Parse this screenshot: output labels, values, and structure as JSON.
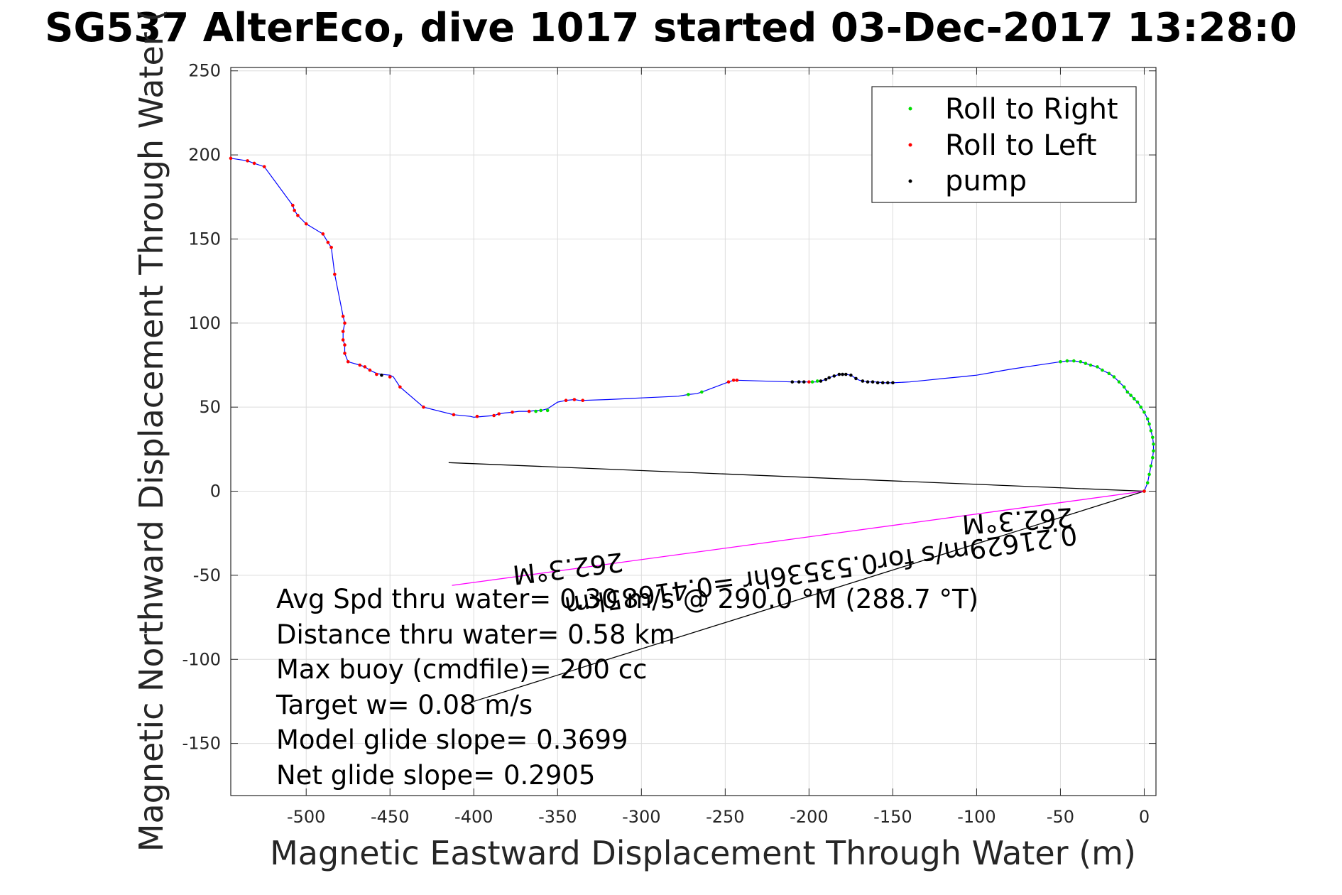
{
  "chart_data": {
    "type": "line",
    "title": "SG537 AlterEco, dive 1017 started 03-Dec-2017 13:28:0",
    "xlabel": "Magnetic Eastward Displacement Through Water (m)",
    "ylabel": "Magnetic Northward Displacement Through Water (",
    "xlim": [
      -545,
      7
    ],
    "ylim": [
      -181,
      252
    ],
    "xticks": [
      -500,
      -450,
      -400,
      -350,
      -300,
      -250,
      -200,
      -150,
      -100,
      -50,
      0
    ],
    "yticks": [
      -150,
      -100,
      -50,
      0,
      50,
      100,
      150,
      200,
      250
    ],
    "grid": true,
    "legend": {
      "position": "top-right",
      "entries": [
        {
          "label": "Roll to Right",
          "color": "#00dd00",
          "marker": "dot"
        },
        {
          "label": "Roll to Left",
          "color": "#ff0000",
          "marker": "dot"
        },
        {
          "label": "pump",
          "color": "#000000",
          "marker": "dot"
        }
      ]
    },
    "track": {
      "color": "#0000ff",
      "x": [
        0,
        2,
        3,
        4,
        5,
        5.5,
        5.5,
        5,
        4,
        3,
        2,
        0,
        -2,
        -4,
        -6,
        -8,
        -10,
        -12,
        -15,
        -18,
        -21,
        -25,
        -28,
        -32,
        -35,
        -38,
        -42,
        -46,
        -50,
        -60,
        -80,
        -100,
        -105,
        -110,
        -120,
        -130,
        -140,
        -150,
        -152,
        -155,
        -160,
        -165,
        -170,
        -172,
        -175,
        -178,
        -180,
        -182,
        -185,
        -188,
        -190,
        -193,
        -195,
        -198,
        -200,
        -203,
        -206,
        -210,
        -243,
        -245,
        -248,
        -264,
        -267,
        -272,
        -275,
        -278,
        -300,
        -320,
        -335,
        -337,
        -340,
        -345,
        -350,
        -356,
        -360,
        -363,
        -367,
        -373,
        -377,
        -382,
        -385,
        -388,
        -400,
        -402,
        -412,
        -430,
        -444,
        -448,
        -450,
        -455,
        -458,
        -462,
        -465,
        -468,
        -475,
        -477,
        -477,
        -478,
        -478,
        -477,
        -478,
        -483,
        -485,
        -487,
        -490,
        -500,
        -505,
        -507,
        -508,
        -525,
        -531,
        -535,
        -545
      ],
      "y": [
        0,
        5,
        10,
        15,
        20,
        24,
        28,
        32,
        36,
        40,
        43,
        47,
        50,
        53,
        55,
        57,
        59,
        62,
        65,
        68,
        70,
        72,
        74,
        75,
        76,
        77,
        77.5,
        77.5,
        77,
        75.5,
        72.5,
        69,
        68.5,
        68,
        67,
        66,
        65,
        64.5,
        64.5,
        64.5,
        65,
        65,
        66,
        67,
        69,
        69.5,
        69.5,
        69.5,
        68.5,
        67.5,
        66.5,
        65.5,
        65,
        65,
        65,
        65,
        65,
        65,
        66,
        66,
        65,
        59,
        58,
        57.5,
        57,
        56.5,
        55.5,
        54.5,
        54,
        54,
        54.5,
        54,
        53,
        49,
        48,
        48,
        47.5,
        47.5,
        47,
        46.5,
        46,
        45,
        44,
        44.5,
        45.5,
        50,
        62,
        68,
        69,
        69.5,
        70,
        72,
        74,
        75,
        77,
        82,
        87,
        90,
        95,
        100,
        104,
        129,
        145,
        148,
        153,
        159,
        164,
        167,
        170,
        193,
        195,
        196.5,
        198
      ]
    },
    "markers": {
      "roll_right": {
        "x": [
          0,
          2,
          3,
          4,
          5,
          5.5,
          5.5,
          5,
          4,
          3,
          2,
          0,
          -2,
          -4,
          -6,
          -8,
          -10,
          -12,
          -15,
          -18,
          -21,
          -25,
          -28,
          -32,
          -35,
          -38,
          -42,
          -46,
          -50,
          -195,
          -198,
          -264,
          -272,
          -356,
          -360,
          -363
        ],
        "y": [
          0,
          5,
          10,
          15,
          20,
          24,
          28,
          32,
          36,
          40,
          43,
          47,
          50,
          53,
          55,
          57,
          59,
          62,
          65,
          68,
          70,
          72,
          74,
          75,
          76,
          77,
          77.5,
          77.5,
          77,
          65.5,
          65,
          59,
          57.5,
          48,
          48,
          47.5
        ]
      },
      "roll_left": {
        "x": [
          0,
          -200,
          -243,
          -245,
          -248,
          -335,
          -340,
          -345,
          -367,
          -377,
          -385,
          -388,
          -398,
          -412,
          -430,
          -444,
          -450,
          -458,
          -462,
          -465,
          -468,
          -475,
          -477,
          -477,
          -478,
          -478,
          -477,
          -478,
          -483,
          -485,
          -487,
          -490,
          -500,
          -505,
          -507,
          -508,
          -525,
          -531,
          -535,
          -545
        ],
        "y": [
          0,
          65,
          66,
          66,
          65,
          54,
          54.5,
          54,
          47.5,
          47,
          46,
          45,
          44.5,
          45.5,
          50,
          62,
          68,
          69.5,
          72,
          74,
          75,
          77,
          82,
          87,
          90,
          95,
          100,
          104,
          129,
          145,
          148,
          153,
          159,
          164,
          167,
          170,
          193,
          195,
          196.5,
          198
        ]
      },
      "pump": {
        "x": [
          -150,
          -153,
          -156,
          -159,
          -162,
          -165,
          -168,
          -172,
          -175,
          -178,
          -180,
          -182,
          -185,
          -188,
          -190,
          -193,
          -203,
          -206,
          -210,
          -455
        ],
        "y": [
          64.5,
          64.5,
          64.5,
          64.5,
          65,
          65,
          65.5,
          67,
          69,
          69.5,
          69.5,
          69.5,
          68.5,
          67.5,
          66.5,
          65.5,
          65,
          65,
          65,
          69
        ]
      }
    },
    "vectors": [
      {
        "color": "#000000",
        "x": [
          0,
          -415
        ],
        "y": [
          0,
          17
        ]
      },
      {
        "color": "#000000",
        "x": [
          0,
          -400
        ],
        "y": [
          0,
          -125
        ]
      },
      {
        "color": "#ff00ff",
        "x": [
          0,
          -413
        ],
        "y": [
          0,
          -56
        ]
      }
    ],
    "annotations": {
      "heading_near": "262.3°M",
      "current": "0.21629m/s for0.53536hr =0.41685km",
      "heading_far": "262.3°M"
    },
    "stats": [
      "Avg Spd thru water=  0.30 m/s @ 290.0 °M (288.7 °T)",
      "Distance thru water=  0.58 km",
      "Max buoy (cmdfile)= 200 cc",
      "Target w= 0.08 m/s",
      "Model glide slope= 0.3699",
      "Net glide slope= 0.2905"
    ]
  }
}
